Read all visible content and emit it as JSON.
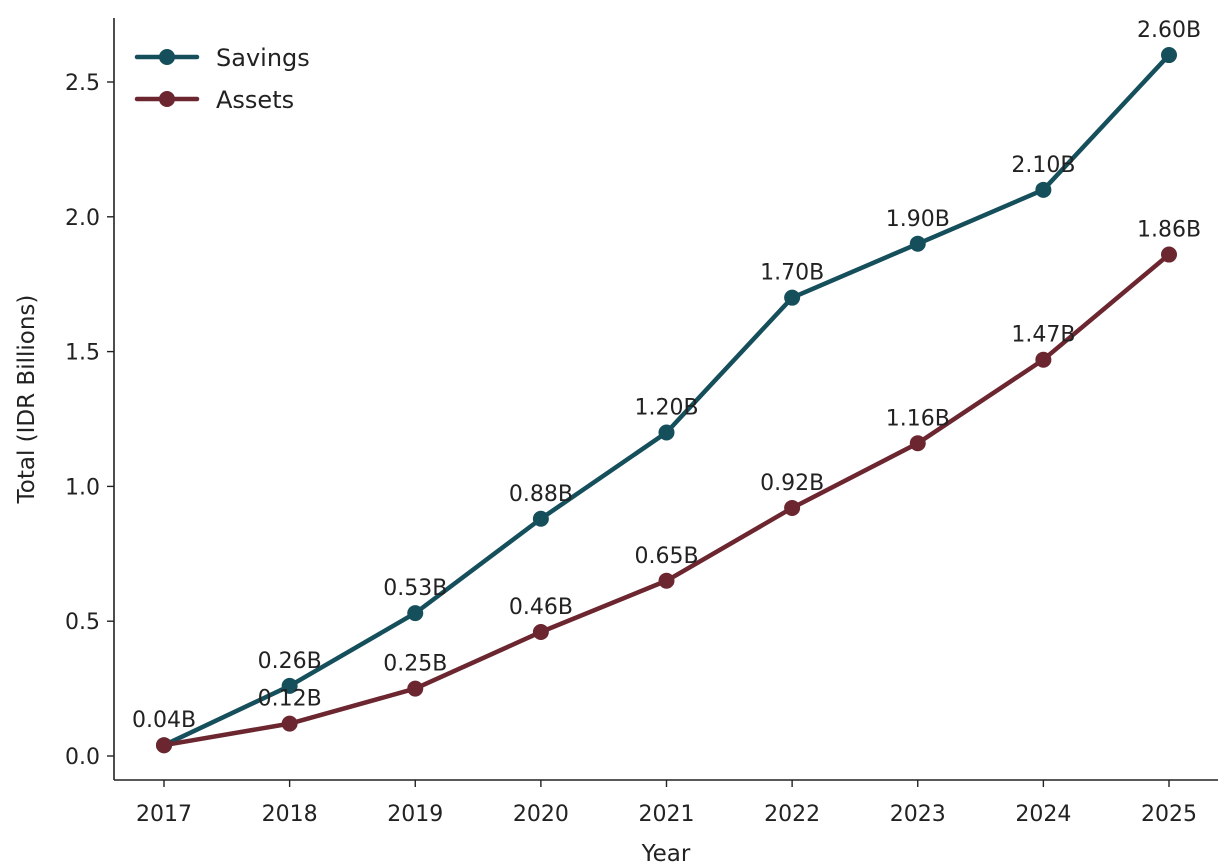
{
  "chart_data": {
    "type": "line",
    "title": "",
    "xlabel": "Year",
    "ylabel": "Total (IDR Billions)",
    "categories": [
      "2017",
      "2018",
      "2019",
      "2020",
      "2021",
      "2022",
      "2023",
      "2024",
      "2025"
    ],
    "yticks": [
      "0.0",
      "0.5",
      "1.0",
      "1.5",
      "2.0",
      "2.5"
    ],
    "ylim": [
      -0.09,
      2.75
    ],
    "legend_position": "top-left",
    "grid": false,
    "series": [
      {
        "name": "Savings",
        "color": "#154f5c",
        "values": [
          0.04,
          0.26,
          0.53,
          0.88,
          1.2,
          1.7,
          1.9,
          2.1,
          2.6
        ],
        "labels": [
          "0.04B",
          "0.26B",
          "0.53B",
          "0.88B",
          "1.20B",
          "1.70B",
          "1.90B",
          "2.10B",
          "2.60B"
        ]
      },
      {
        "name": "Assets",
        "color": "#6b2630",
        "values": [
          0.04,
          0.12,
          0.25,
          0.46,
          0.65,
          0.92,
          1.16,
          1.47,
          1.86
        ],
        "labels": [
          "",
          "0.12B",
          "0.25B",
          "0.46B",
          "0.65B",
          "0.92B",
          "1.16B",
          "1.47B",
          "1.86B"
        ]
      }
    ]
  }
}
